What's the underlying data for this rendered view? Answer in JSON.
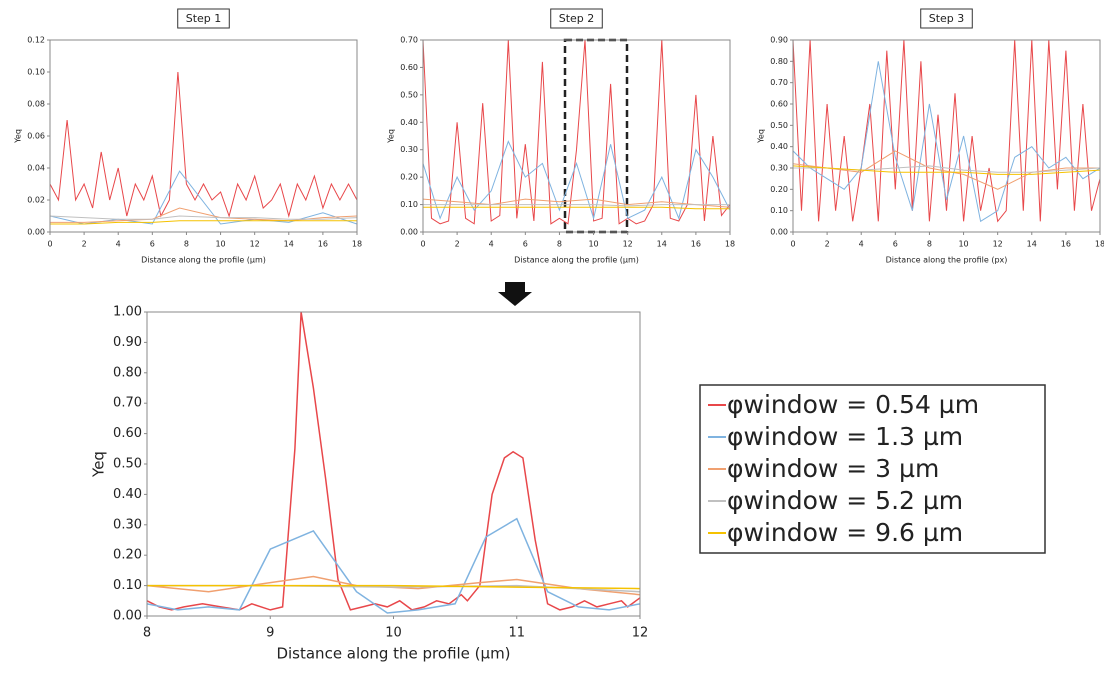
{
  "chart_data": [
    {
      "type": "line",
      "title": "Step 1",
      "xlabel": "Distance along the profile (µm)",
      "ylabel": "Yeq",
      "xlim": [
        0,
        18
      ],
      "xticks": [
        0,
        2,
        4,
        6,
        8,
        10,
        12,
        14,
        16,
        18
      ],
      "ylim": [
        0,
        0.12
      ],
      "yticks": [
        {
          "value": 0,
          "label": "0.00"
        },
        0.02,
        0.04,
        0.06,
        0.08,
        {
          "value": 0.1,
          "label": "0.10"
        },
        0.12
      ],
      "series": [
        {
          "color": "#e8474a",
          "x": [
            0,
            0.5,
            1,
            1.5,
            2,
            2.5,
            3,
            3.5,
            4,
            4.5,
            5,
            5.5,
            6,
            6.5,
            7,
            7.5,
            8,
            8.5,
            9,
            9.5,
            10,
            10.5,
            11,
            11.5,
            12,
            12.5,
            13,
            13.5,
            14,
            14.5,
            15,
            15.5,
            16,
            16.5,
            17,
            17.5,
            18
          ],
          "values": [
            0.03,
            0.02,
            0.07,
            0.02,
            0.03,
            0.015,
            0.05,
            0.02,
            0.04,
            0.01,
            0.03,
            0.02,
            0.035,
            0.01,
            0.02,
            0.1,
            0.03,
            0.02,
            0.03,
            0.02,
            0.025,
            0.01,
            0.03,
            0.02,
            0.035,
            0.015,
            0.02,
            0.03,
            0.01,
            0.03,
            0.02,
            0.035,
            0.015,
            0.03,
            0.02,
            0.03,
            0.02
          ]
        },
        {
          "color": "#7fb3e0",
          "x": [
            0,
            2,
            4,
            6,
            7.6,
            10,
            12,
            14,
            16,
            18
          ],
          "values": [
            0.01,
            0.005,
            0.008,
            0.005,
            0.038,
            0.005,
            0.008,
            0.006,
            0.012,
            0.005
          ]
        },
        {
          "color": "#f0a070",
          "x": [
            0,
            2,
            4,
            6,
            7.6,
            10,
            12,
            14,
            16,
            18
          ],
          "values": [
            0.006,
            0.006,
            0.007,
            0.008,
            0.015,
            0.009,
            0.008,
            0.007,
            0.009,
            0.01
          ]
        },
        {
          "color": "#c0c0c0",
          "x": [
            0,
            2,
            4,
            6,
            7.6,
            10,
            12,
            14,
            16,
            18
          ],
          "values": [
            0.01,
            0.009,
            0.008,
            0.008,
            0.01,
            0.009,
            0.009,
            0.008,
            0.008,
            0.009
          ]
        },
        {
          "color": "#f5c200",
          "x": [
            0,
            2,
            4,
            6,
            7.6,
            10,
            12,
            14,
            16,
            18
          ],
          "values": [
            0.005,
            0.005,
            0.006,
            0.006,
            0.007,
            0.007,
            0.007,
            0.007,
            0.007,
            0.007
          ]
        }
      ]
    },
    {
      "type": "line",
      "title": "Step 2",
      "xlabel": "Distance along the profile (µm)",
      "ylabel": "Yeq",
      "xlim": [
        0,
        18
      ],
      "xticks": [
        0,
        2,
        4,
        6,
        8,
        10,
        12,
        14,
        16,
        18
      ],
      "ylim": [
        0,
        0.7
      ],
      "yticks": [
        {
          "value": 0,
          "label": "0.00"
        },
        {
          "value": 0.1,
          "label": "0.10"
        },
        {
          "value": 0.2,
          "label": "0.20"
        },
        {
          "value": 0.3,
          "label": "0.30"
        },
        {
          "value": 0.4,
          "label": "0.40"
        },
        {
          "value": 0.5,
          "label": "0.50"
        },
        {
          "value": 0.6,
          "label": "0.60"
        },
        {
          "value": 0.7,
          "label": "0.70"
        }
      ],
      "series": [
        {
          "color": "#e8474a",
          "x": [
            0,
            0.5,
            1,
            1.5,
            2,
            2.5,
            3,
            3.5,
            4,
            4.5,
            5,
            5.5,
            6,
            6.5,
            7,
            7.5,
            8,
            8.5,
            9,
            9.5,
            10,
            10.5,
            11,
            11.5,
            12,
            12.5,
            13,
            13.5,
            14,
            14.5,
            15,
            15.5,
            16,
            16.5,
            17,
            17.5,
            18
          ],
          "values": [
            0.7,
            0.05,
            0.03,
            0.04,
            0.4,
            0.05,
            0.03,
            0.47,
            0.04,
            0.06,
            0.7,
            0.05,
            0.32,
            0.04,
            0.62,
            0.03,
            0.05,
            0.03,
            0.3,
            0.7,
            0.04,
            0.05,
            0.54,
            0.03,
            0.05,
            0.03,
            0.04,
            0.1,
            0.7,
            0.05,
            0.04,
            0.1,
            0.5,
            0.04,
            0.35,
            0.06,
            0.1
          ]
        },
        {
          "color": "#7fb3e0",
          "x": [
            0,
            1,
            2,
            3,
            4,
            5,
            6,
            7,
            8,
            9,
            10,
            11,
            12,
            13,
            14,
            15,
            16,
            17,
            18
          ],
          "values": [
            0.25,
            0.05,
            0.2,
            0.08,
            0.15,
            0.33,
            0.2,
            0.25,
            0.08,
            0.25,
            0.05,
            0.32,
            0.05,
            0.08,
            0.2,
            0.05,
            0.3,
            0.2,
            0.08
          ]
        },
        {
          "color": "#f0a070",
          "x": [
            0,
            2,
            4,
            6,
            8,
            10,
            12,
            14,
            16,
            18
          ],
          "values": [
            0.12,
            0.11,
            0.1,
            0.12,
            0.11,
            0.12,
            0.1,
            0.11,
            0.1,
            0.09
          ]
        },
        {
          "color": "#c0c0c0",
          "x": [
            0,
            2,
            4,
            6,
            8,
            10,
            12,
            14,
            16,
            18
          ],
          "values": [
            0.1,
            0.1,
            0.1,
            0.1,
            0.1,
            0.1,
            0.095,
            0.1,
            0.1,
            0.1
          ]
        },
        {
          "color": "#f5c200",
          "x": [
            0,
            2,
            4,
            6,
            8,
            10,
            12,
            14,
            16,
            18
          ],
          "values": [
            0.09,
            0.09,
            0.09,
            0.09,
            0.09,
            0.09,
            0.09,
            0.09,
            0.085,
            0.085
          ]
        }
      ]
    },
    {
      "type": "line",
      "title": "Step 3",
      "xlabel": "Distance along the profile (px)",
      "ylabel": "Yeq",
      "xlim": [
        0,
        18
      ],
      "xticks": [
        0,
        2,
        4,
        6,
        8,
        10,
        12,
        14,
        16,
        18
      ],
      "ylim": [
        0,
        0.9
      ],
      "yticks": [
        {
          "value": 0,
          "label": "0.00"
        },
        {
          "value": 0.1,
          "label": "0.10"
        },
        {
          "value": 0.2,
          "label": "0.20"
        },
        {
          "value": 0.3,
          "label": "0.30"
        },
        {
          "value": 0.4,
          "label": "0.40"
        },
        {
          "value": 0.5,
          "label": "0.50"
        },
        {
          "value": 0.6,
          "label": "0.60"
        },
        {
          "value": 0.7,
          "label": "0.70"
        },
        {
          "value": 0.8,
          "label": "0.80"
        },
        {
          "value": 0.9,
          "label": "0.90"
        }
      ],
      "series": [
        {
          "color": "#e8474a",
          "x": [
            0,
            0.5,
            1,
            1.5,
            2,
            2.5,
            3,
            3.5,
            4,
            4.5,
            5,
            5.5,
            6,
            6.5,
            7,
            7.5,
            8,
            8.5,
            9,
            9.5,
            10,
            10.5,
            11,
            11.5,
            12,
            12.5,
            13,
            13.5,
            14,
            14.5,
            15,
            15.5,
            16,
            16.5,
            17,
            17.5,
            18
          ],
          "values": [
            0.9,
            0.1,
            0.9,
            0.05,
            0.6,
            0.1,
            0.45,
            0.05,
            0.3,
            0.6,
            0.05,
            0.85,
            0.2,
            0.9,
            0.1,
            0.8,
            0.05,
            0.55,
            0.1,
            0.65,
            0.05,
            0.45,
            0.1,
            0.3,
            0.05,
            0.1,
            0.9,
            0.1,
            0.9,
            0.05,
            0.9,
            0.2,
            0.85,
            0.1,
            0.6,
            0.1,
            0.25
          ]
        },
        {
          "color": "#7fb3e0",
          "x": [
            0,
            1,
            2,
            3,
            4,
            5,
            6,
            7,
            8,
            9,
            10,
            11,
            12,
            13,
            14,
            15,
            16,
            17,
            18
          ],
          "values": [
            0.38,
            0.3,
            0.25,
            0.2,
            0.3,
            0.8,
            0.35,
            0.1,
            0.6,
            0.15,
            0.45,
            0.05,
            0.1,
            0.35,
            0.4,
            0.3,
            0.35,
            0.25,
            0.3
          ]
        },
        {
          "color": "#f0a070",
          "x": [
            0,
            2,
            4,
            6,
            8,
            10,
            12,
            14,
            16,
            18
          ],
          "values": [
            0.32,
            0.3,
            0.28,
            0.38,
            0.3,
            0.27,
            0.2,
            0.28,
            0.3,
            0.3
          ]
        },
        {
          "color": "#c0c0c0",
          "x": [
            0,
            2,
            4,
            6,
            8,
            10,
            12,
            14,
            16,
            18
          ],
          "values": [
            0.3,
            0.3,
            0.29,
            0.3,
            0.31,
            0.29,
            0.28,
            0.28,
            0.29,
            0.3
          ]
        },
        {
          "color": "#f5c200",
          "x": [
            0,
            2,
            4,
            6,
            8,
            10,
            12,
            14,
            16,
            18
          ],
          "values": [
            0.31,
            0.3,
            0.29,
            0.28,
            0.28,
            0.28,
            0.27,
            0.27,
            0.28,
            0.29
          ]
        }
      ]
    },
    {
      "type": "line",
      "xlabel": "Distance along the profile (µm)",
      "ylabel": "Yeq",
      "legend": "right",
      "xlim": [
        8,
        12
      ],
      "xticks": [
        8,
        9,
        10,
        11,
        12
      ],
      "ylim": [
        0,
        1
      ],
      "yticks": [
        {
          "value": 0,
          "label": "0.00"
        },
        {
          "value": 0.1,
          "label": "0.10"
        },
        {
          "value": 0.2,
          "label": "0.20"
        },
        {
          "value": 0.3,
          "label": "0.30"
        },
        {
          "value": 0.4,
          "label": "0.40"
        },
        {
          "value": 0.5,
          "label": "0.50"
        },
        {
          "value": 0.6,
          "label": "0.60"
        },
        {
          "value": 0.7,
          "label": "0.70"
        },
        {
          "value": 0.8,
          "label": "0.80"
        },
        {
          "value": 0.9,
          "label": "0.90"
        },
        {
          "value": 1,
          "label": "1.00"
        }
      ],
      "series": [
        {
          "name": "φwindow = 0.54 µm",
          "color": "#e8474a",
          "x": [
            8,
            8.1,
            8.2,
            8.3,
            8.45,
            8.6,
            8.75,
            8.85,
            9,
            9.1,
            9.2,
            9.25,
            9.35,
            9.45,
            9.55,
            9.65,
            9.75,
            9.85,
            9.95,
            10.05,
            10.15,
            10.25,
            10.35,
            10.45,
            10.55,
            10.6,
            10.7,
            10.8,
            10.9,
            10.97,
            11.05,
            11.15,
            11.25,
            11.35,
            11.45,
            11.55,
            11.65,
            11.75,
            11.85,
            11.9,
            12
          ],
          "values": [
            0.05,
            0.03,
            0.02,
            0.03,
            0.04,
            0.03,
            0.02,
            0.04,
            0.02,
            0.03,
            0.55,
            1,
            0.75,
            0.45,
            0.12,
            0.02,
            0.03,
            0.04,
            0.03,
            0.05,
            0.02,
            0.03,
            0.05,
            0.04,
            0.07,
            0.05,
            0.1,
            0.4,
            0.52,
            0.54,
            0.52,
            0.25,
            0.04,
            0.02,
            0.03,
            0.05,
            0.03,
            0.04,
            0.05,
            0.03,
            0.06
          ]
        },
        {
          "name": "φwindow = 1.3 µm",
          "color": "#7fb3e0",
          "x": [
            8,
            8.25,
            8.5,
            8.75,
            9,
            9.35,
            9.7,
            9.95,
            10.2,
            10.5,
            10.75,
            11,
            11.25,
            11.5,
            11.75,
            12
          ],
          "values": [
            0.04,
            0.02,
            0.03,
            0.02,
            0.22,
            0.28,
            0.08,
            0.01,
            0.02,
            0.04,
            0.26,
            0.32,
            0.08,
            0.03,
            0.02,
            0.04
          ]
        },
        {
          "name": "φwindow = 3 µm",
          "color": "#f0a070",
          "x": [
            8,
            8.5,
            9,
            9.35,
            9.7,
            10.2,
            10.7,
            11,
            11.5,
            12
          ],
          "values": [
            0.1,
            0.08,
            0.11,
            0.13,
            0.1,
            0.09,
            0.11,
            0.12,
            0.09,
            0.07
          ]
        },
        {
          "name": "φwindow = 5.2 µm",
          "color": "#c0c0c0",
          "x": [
            8,
            9,
            10,
            11,
            12
          ],
          "values": [
            0.1,
            0.1,
            0.095,
            0.1,
            0.08
          ]
        },
        {
          "name": "φwindow = 9.6 µm",
          "color": "#f5c200",
          "x": [
            8,
            9,
            10,
            11,
            12
          ],
          "values": [
            0.1,
            0.1,
            0.1,
            0.095,
            0.09
          ]
        }
      ]
    }
  ]
}
